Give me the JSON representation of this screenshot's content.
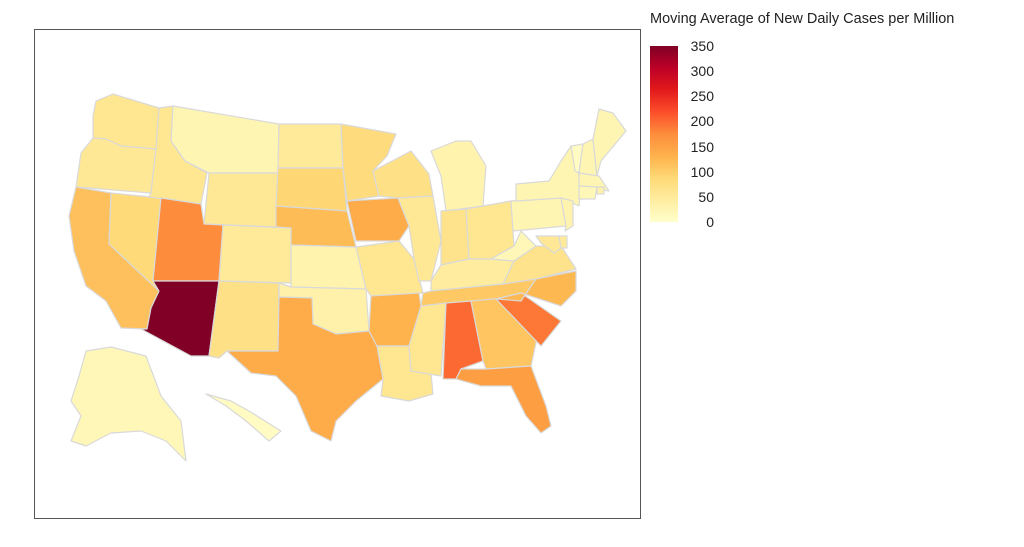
{
  "legend": {
    "title": "Moving Average of New Daily Cases per Million",
    "ticks": [
      "350",
      "300",
      "250",
      "200",
      "150",
      "100",
      "50",
      "0"
    ],
    "tick_values": [
      350,
      300,
      250,
      200,
      150,
      100,
      50,
      0
    ],
    "range": [
      0,
      350
    ],
    "colorscale": [
      "#ffffcc",
      "#ffeda0",
      "#fed976",
      "#feb24c",
      "#fd8d3c",
      "#fc4e2a",
      "#e31a1c",
      "#bd0026",
      "#800026"
    ]
  },
  "chart_data": {
    "type": "choropleth",
    "region": "USA states",
    "metric": "Moving Average of New Daily Cases per Million",
    "values": {
      "WA": 60,
      "OR": 55,
      "CA": 115,
      "NV": 85,
      "ID": 60,
      "MT": 25,
      "WY": 55,
      "UT": 175,
      "AZ": 350,
      "CO": 50,
      "NM": 70,
      "ND": 50,
      "SD": 90,
      "NE": 120,
      "KS": 30,
      "OK": 35,
      "TX": 140,
      "MN": 80,
      "IA": 140,
      "MO": 60,
      "AR": 130,
      "LA": 60,
      "WI": 70,
      "IL": 55,
      "MI": 30,
      "IN": 65,
      "OH": 60,
      "KY": 45,
      "TN": 105,
      "MS": 60,
      "AL": 200,
      "GA": 110,
      "FL": 155,
      "SC": 190,
      "NC": 125,
      "VA": 65,
      "WV": 20,
      "PA": 25,
      "NY": 25,
      "VT": 10,
      "NH": 25,
      "ME": 25,
      "MA": 25,
      "RI": 35,
      "CT": 20,
      "NJ": 30,
      "DE": 50,
      "MD": 55,
      "AK": 20,
      "HI": 10
    }
  }
}
